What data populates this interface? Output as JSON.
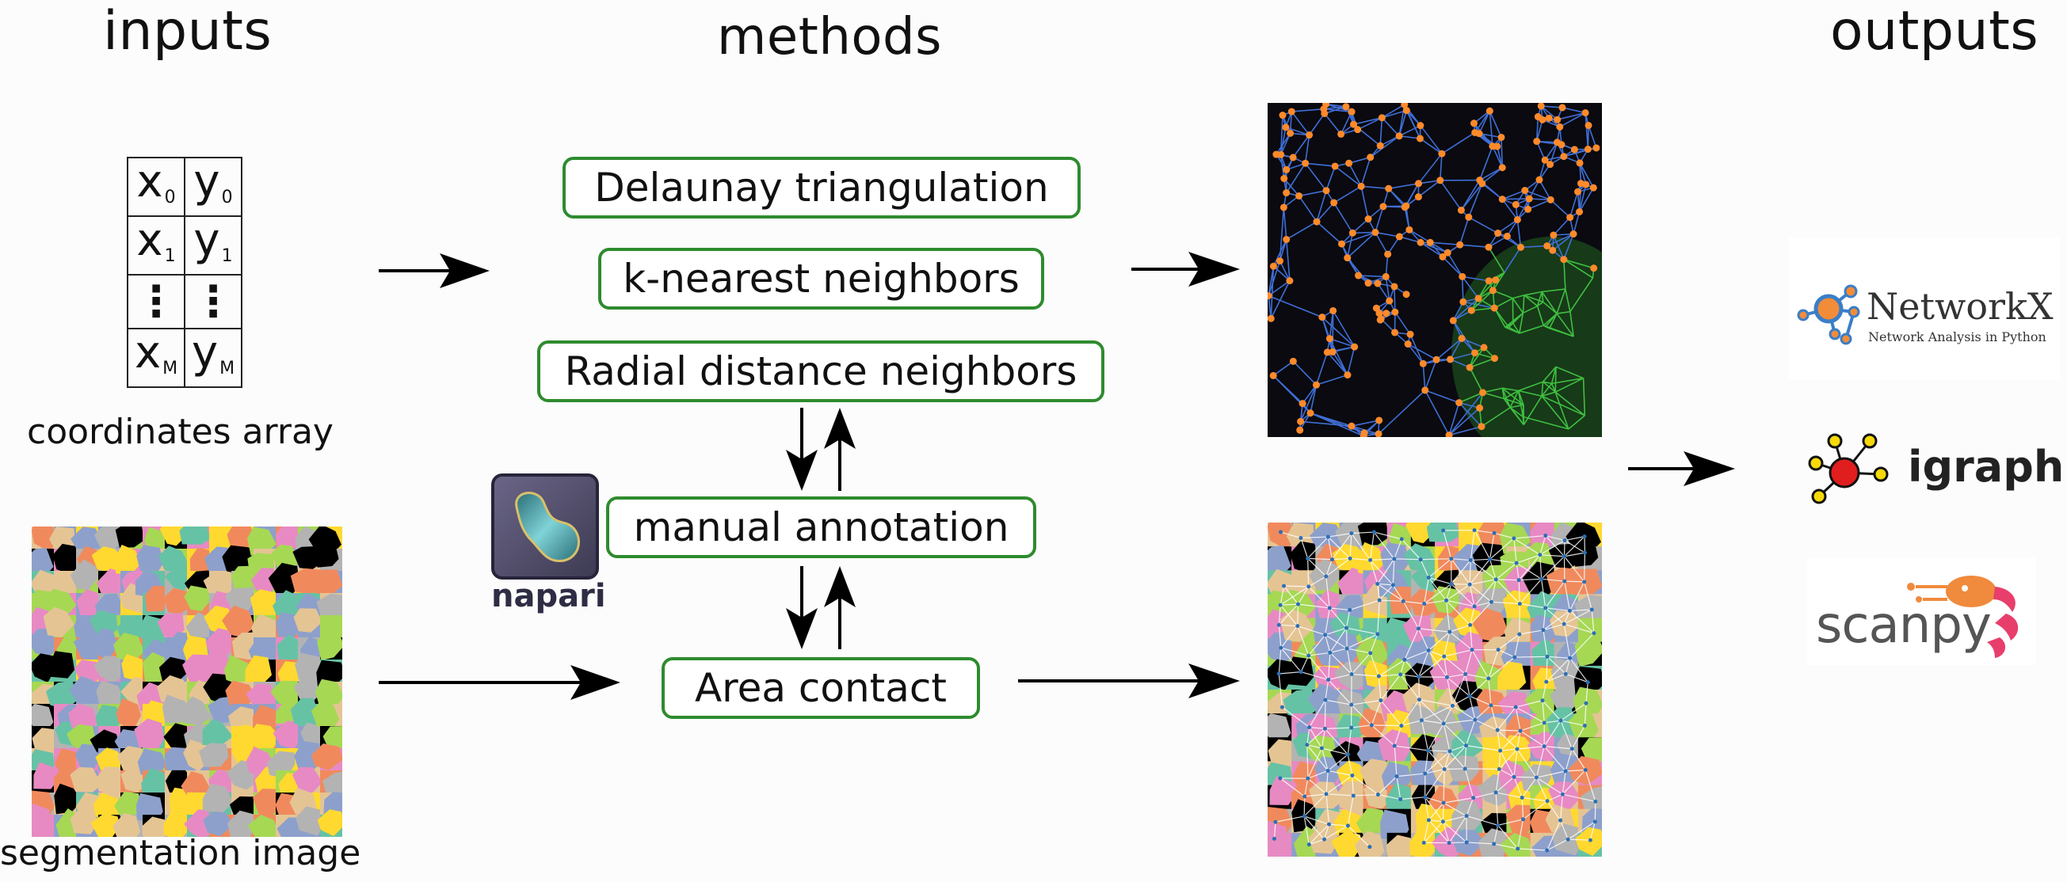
{
  "headings": {
    "inputs": "inputs",
    "methods": "methods",
    "outputs": "outputs"
  },
  "inputs": {
    "coordinates": {
      "caption": "coordinates array",
      "rows": [
        {
          "x": "x",
          "x_sub": "0",
          "y": "y",
          "y_sub": "0"
        },
        {
          "x": "x",
          "x_sub": "1",
          "y": "y",
          "y_sub": "1"
        },
        {
          "x": "⋮",
          "x_sub": "",
          "y": "⋮",
          "y_sub": ""
        },
        {
          "x": "x",
          "x_sub": "M",
          "y": "y",
          "y_sub": "M"
        }
      ]
    },
    "segmentation": {
      "caption": "segmentation image"
    }
  },
  "methods": {
    "delaunay": "Delaunay triangulation",
    "knn": "k-nearest neighbors",
    "radial": "Radial distance neighbors",
    "manual": "manual annotation",
    "area": "Area contact",
    "napari_label": "napari"
  },
  "outputs": {
    "networkx": {
      "name": "NetworkX",
      "tagline": "Network Analysis in Python"
    },
    "igraph": {
      "name": "igraph"
    },
    "scanpy": {
      "name": "scanpy"
    }
  },
  "colors": {
    "method_border": "#2e8b2e",
    "node_orange": "#ff8a2a",
    "edge_blue": "#3f6fd6",
    "edge_green": "#3fbf3f",
    "cell_palette": [
      "#f08a5d",
      "#e78ac3",
      "#a6d854",
      "#ffd92f",
      "#e5c494",
      "#b3b3b3",
      "#8da0cb",
      "#66c2a5",
      "#000000"
    ]
  }
}
